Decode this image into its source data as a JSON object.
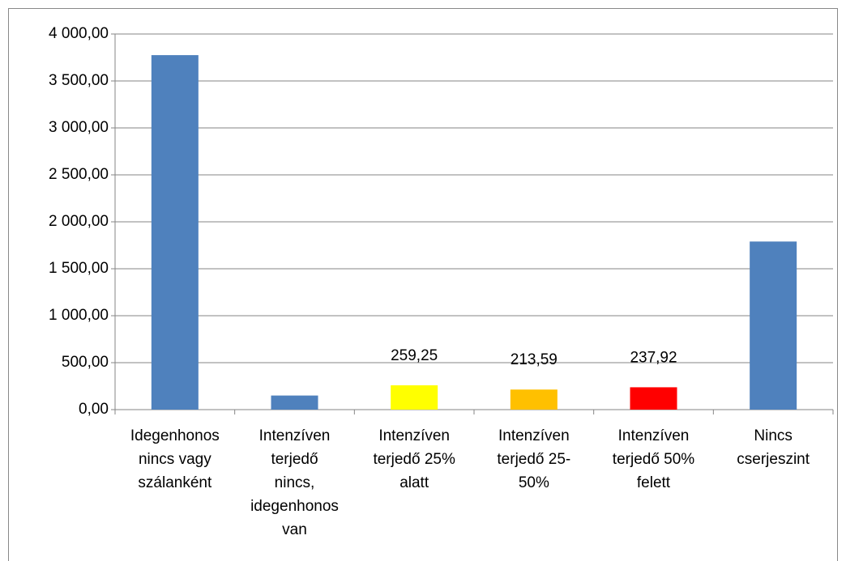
{
  "chart_data": {
    "type": "bar",
    "categories": [
      "Idegenhonos\nnincs vagy\nszálanként",
      "Intenzíven\nterjedő\nnincs,\nidegenhonos\nvan",
      "Intenzíven\nterjedő 25%\nalatt",
      "Intenzíven\nterjedő 25-\n50%",
      "Intenzíven\nterjedő 50%\nfelett",
      "Nincs\ncserjeszint"
    ],
    "values": [
      3775,
      150,
      259.25,
      213.59,
      237.92,
      1790
    ],
    "value_labels": [
      null,
      null,
      "259,25",
      "213,59",
      "237,92",
      null
    ],
    "colors": [
      "#4f81bd",
      "#4f81bd",
      "#ffff00",
      "#ffc000",
      "#ff0000",
      "#4f81bd"
    ],
    "ylim": [
      0,
      4000
    ],
    "yticks": [
      {
        "value": 0,
        "label": "0,00"
      },
      {
        "value": 500,
        "label": "500,00"
      },
      {
        "value": 1000,
        "label": "1 000,00"
      },
      {
        "value": 1500,
        "label": "1 500,00"
      },
      {
        "value": 2000,
        "label": "2 000,00"
      },
      {
        "value": 2500,
        "label": "2 500,00"
      },
      {
        "value": 3000,
        "label": "3 000,00"
      },
      {
        "value": 3500,
        "label": "3 500,00"
      },
      {
        "value": 4000,
        "label": "4 000,00"
      }
    ],
    "grid": true
  }
}
